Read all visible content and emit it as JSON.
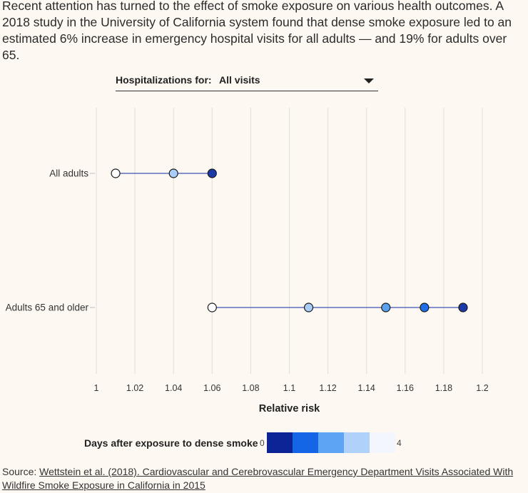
{
  "intro": "Recent attention has turned to the effect of smoke exposure on various health outcomes. A 2018 study in the University of California system found that dense smoke exposure led to an estimated 6% increase in emergency hospital visits for all adults — and 19% for adults over 65.",
  "selector": {
    "label": "Hospitalizations for:",
    "value": "All visits"
  },
  "chart_data": {
    "type": "scatter",
    "xlabel": "Relative risk",
    "ylabel": "",
    "xlim": [
      1,
      1.2
    ],
    "x_ticks": [
      1,
      1.02,
      1.04,
      1.06,
      1.08,
      1.1,
      1.12,
      1.14,
      1.16,
      1.18,
      1.2
    ],
    "x_tick_labels": [
      "1",
      "1.02",
      "1.04",
      "1.06",
      "1.08",
      "1.1",
      "1.12",
      "1.14",
      "1.16",
      "1.18",
      "1.2"
    ],
    "grid": true,
    "categories": [
      "All adults",
      "Adults 65 and older"
    ],
    "series": [
      {
        "category": "All adults",
        "points": [
          {
            "x": 1.01,
            "color": "#ffffff"
          },
          {
            "x": 1.04,
            "color": "#a9cdf7"
          },
          {
            "x": 1.06,
            "color": "#1b3aa8"
          }
        ]
      },
      {
        "category": "Adults 65 and older",
        "points": [
          {
            "x": 1.06,
            "color": "#ffffff"
          },
          {
            "x": 1.11,
            "color": "#a9cdf7"
          },
          {
            "x": 1.15,
            "color": "#5aa2f0"
          },
          {
            "x": 1.17,
            "color": "#1f6ee8"
          },
          {
            "x": 1.19,
            "color": "#1b3aa8"
          }
        ]
      }
    ],
    "line_color": "#3f51b5",
    "legend": {
      "title": "Days after exposure to dense smoke",
      "min_label": "0",
      "max_label": "4",
      "colors": [
        "#0d2496",
        "#1466e6",
        "#5ea4f5",
        "#b0d2fa",
        "#f3f6fd"
      ]
    }
  },
  "source": {
    "prefix": "Source: ",
    "link_text": "Wettstein et al. (2018). Cardiovascular and Cerebrovascular Emergency Department Visits Associated With Wildfire Smoke Exposure in California in 2015"
  }
}
